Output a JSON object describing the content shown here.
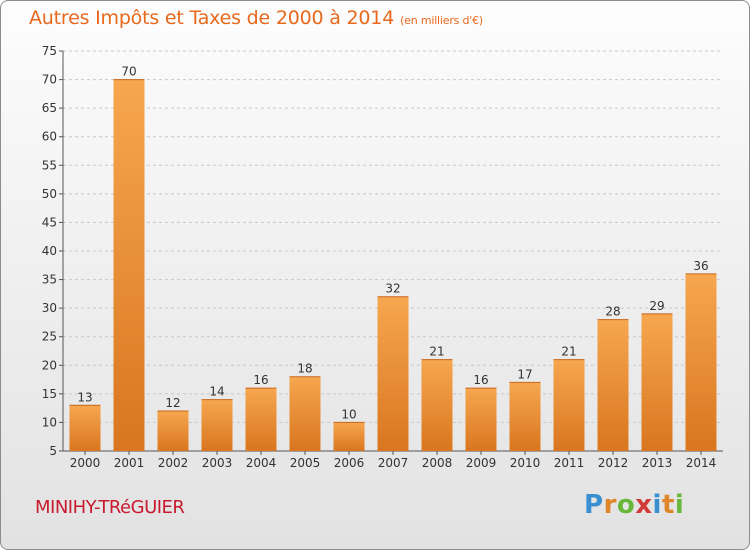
{
  "header": {
    "title": "Autres Impôts et Taxes de 2000 à 2014",
    "unit": "(en milliers d'€)"
  },
  "footer": {
    "town": "MINIHY-TRéGUIER",
    "logo_letters": [
      "P",
      "r",
      "o",
      "x",
      "i",
      "t",
      "i"
    ],
    "logo_colors": [
      "#3a8fd0",
      "#e0862a",
      "#67b83a",
      "#d23a3a",
      "#3a8fd0",
      "#e0862a",
      "#67b83a"
    ]
  },
  "colors": {
    "bar_light": "#f6a74f",
    "bar_dark": "#d9761f",
    "title": "#e8681c",
    "town": "#c8192f"
  },
  "chart_data": {
    "type": "bar",
    "categories": [
      "2000",
      "2001",
      "2002",
      "2003",
      "2004",
      "2005",
      "2006",
      "2007",
      "2008",
      "2009",
      "2010",
      "2011",
      "2012",
      "2013",
      "2014"
    ],
    "values": [
      13,
      70,
      12,
      14,
      16,
      18,
      10,
      32,
      21,
      16,
      17,
      21,
      28,
      29,
      36
    ],
    "ylim": [
      5,
      75
    ],
    "yticks": [
      5,
      10,
      15,
      20,
      25,
      30,
      35,
      40,
      45,
      50,
      55,
      60,
      65,
      70,
      75
    ],
    "grid": true
  }
}
